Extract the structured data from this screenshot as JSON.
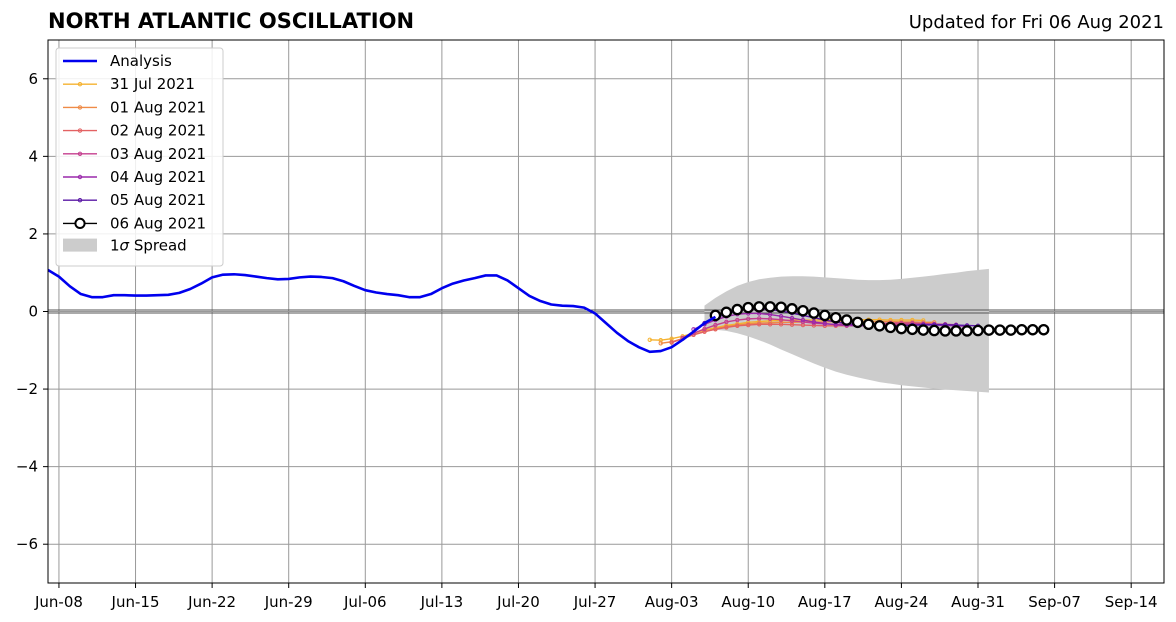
{
  "title": "NORTH ATLANTIC OSCILLATION",
  "updated": "Updated for Fri 06 Aug 2021",
  "legend": {
    "analysis": "Analysis",
    "spread_prefix": "1",
    "spread_sigma": "σ",
    "spread_suffix": " Spread"
  },
  "colors": {
    "analysis": "#0000ee",
    "spread": "#cccccc",
    "zero_line": "#555555",
    "grid": "#999999"
  },
  "chart_data": {
    "type": "line",
    "title": "NORTH ATLANTIC OSCILLATION",
    "xlabel": "",
    "ylabel": "",
    "ylim": [
      -7,
      7
    ],
    "xlim": [
      "2021-06-07",
      "2021-09-17"
    ],
    "grid": true,
    "legend_position": "top-left",
    "x_ticks": [
      {
        "date": "2021-06-08",
        "label": "Jun-08"
      },
      {
        "date": "2021-06-15",
        "label": "Jun-15"
      },
      {
        "date": "2021-06-22",
        "label": "Jun-22"
      },
      {
        "date": "2021-06-29",
        "label": "Jun-29"
      },
      {
        "date": "2021-07-06",
        "label": "Jul-06"
      },
      {
        "date": "2021-07-13",
        "label": "Jul-13"
      },
      {
        "date": "2021-07-20",
        "label": "Jul-20"
      },
      {
        "date": "2021-07-27",
        "label": "Jul-27"
      },
      {
        "date": "2021-08-03",
        "label": "Aug-03"
      },
      {
        "date": "2021-08-10",
        "label": "Aug-10"
      },
      {
        "date": "2021-08-17",
        "label": "Aug-17"
      },
      {
        "date": "2021-08-24",
        "label": "Aug-24"
      },
      {
        "date": "2021-08-31",
        "label": "Aug-31"
      },
      {
        "date": "2021-09-07",
        "label": "Sep-07"
      },
      {
        "date": "2021-09-14",
        "label": "Sep-14"
      }
    ],
    "y_ticks": [
      {
        "value": 6,
        "label": "6"
      },
      {
        "value": 4,
        "label": "4"
      },
      {
        "value": 2,
        "label": "2"
      },
      {
        "value": 0,
        "label": "0"
      },
      {
        "value": -2,
        "label": "−2"
      },
      {
        "value": -4,
        "label": "−4"
      },
      {
        "value": -6,
        "label": "−6"
      }
    ],
    "analysis": {
      "name": "Analysis",
      "start": "2021-06-07",
      "values": [
        1.07,
        0.9,
        0.65,
        0.45,
        0.37,
        0.37,
        0.42,
        0.42,
        0.41,
        0.41,
        0.42,
        0.43,
        0.48,
        0.58,
        0.72,
        0.88,
        0.95,
        0.96,
        0.94,
        0.9,
        0.86,
        0.83,
        0.84,
        0.88,
        0.9,
        0.89,
        0.86,
        0.78,
        0.66,
        0.55,
        0.49,
        0.45,
        0.42,
        0.37,
        0.37,
        0.45,
        0.6,
        0.72,
        0.8,
        0.86,
        0.93,
        0.93,
        0.8,
        0.6,
        0.4,
        0.27,
        0.18,
        0.15,
        0.14,
        0.1,
        -0.05,
        -0.3,
        -0.55,
        -0.76,
        -0.92,
        -1.04,
        -1.02,
        -0.92,
        -0.73,
        -0.52,
        -0.3,
        -0.14
      ]
    },
    "spread": {
      "name": "1σ Spread",
      "start": "2021-08-06",
      "upper": [
        0.15,
        0.35,
        0.52,
        0.66,
        0.76,
        0.83,
        0.87,
        0.9,
        0.91,
        0.91,
        0.9,
        0.88,
        0.86,
        0.84,
        0.82,
        0.81,
        0.81,
        0.82,
        0.84,
        0.87,
        0.9,
        0.93,
        0.97,
        1.0,
        1.04,
        1.07,
        1.1
      ],
      "lower": [
        -0.45,
        -0.47,
        -0.5,
        -0.56,
        -0.64,
        -0.74,
        -0.85,
        -0.98,
        -1.1,
        -1.22,
        -1.34,
        -1.45,
        -1.55,
        -1.63,
        -1.7,
        -1.76,
        -1.82,
        -1.86,
        -1.9,
        -1.93,
        -1.96,
        -1.99,
        -2.01,
        -2.03,
        -2.05,
        -2.07,
        -2.09
      ]
    },
    "forecasts": [
      {
        "name": "31 Jul 2021",
        "color": "#f5b22f",
        "start": "2021-08-01",
        "values": [
          -0.73,
          -0.74,
          -0.7,
          -0.64,
          -0.56,
          -0.48,
          -0.42,
          -0.36,
          -0.32,
          -0.28,
          -0.26,
          -0.24,
          -0.23,
          -0.22,
          -0.22,
          -0.22,
          -0.22,
          -0.21,
          -0.21,
          -0.21,
          -0.21,
          -0.21,
          -0.22,
          -0.22,
          -0.22,
          -0.23
        ]
      },
      {
        "name": "01 Aug 2021",
        "color": "#ef8b47",
        "start": "2021-08-02",
        "values": [
          -0.82,
          -0.78,
          -0.7,
          -0.6,
          -0.52,
          -0.45,
          -0.39,
          -0.35,
          -0.32,
          -0.3,
          -0.29,
          -0.28,
          -0.28,
          -0.27,
          -0.27,
          -0.27,
          -0.26,
          -0.26,
          -0.26,
          -0.26,
          -0.26,
          -0.26,
          -0.27,
          -0.27,
          -0.28,
          -0.28
        ]
      },
      {
        "name": "02 Aug 2021",
        "color": "#e36263",
        "start": "2021-08-03",
        "values": [
          -0.8,
          -0.7,
          -0.6,
          -0.52,
          -0.46,
          -0.41,
          -0.37,
          -0.35,
          -0.33,
          -0.33,
          -0.33,
          -0.34,
          -0.35,
          -0.36,
          -0.37,
          -0.37,
          -0.37,
          -0.36,
          -0.35,
          -0.34,
          -0.33,
          -0.33,
          -0.33,
          -0.33,
          -0.33,
          -0.33
        ]
      },
      {
        "name": "03 Aug 2021",
        "color": "#c43e8e",
        "start": "2021-08-04",
        "values": [
          -0.68,
          -0.56,
          -0.45,
          -0.35,
          -0.27,
          -0.22,
          -0.19,
          -0.18,
          -0.19,
          -0.21,
          -0.24,
          -0.27,
          -0.3,
          -0.32,
          -0.33,
          -0.33,
          -0.33,
          -0.32,
          -0.31,
          -0.3,
          -0.3,
          -0.3,
          -0.31,
          -0.32,
          -0.33,
          -0.34
        ]
      },
      {
        "name": "04 Aug 2021",
        "color": "#9a28ab",
        "start": "2021-08-05",
        "values": [
          -0.46,
          -0.33,
          -0.22,
          -0.13,
          -0.07,
          -0.05,
          -0.05,
          -0.08,
          -0.12,
          -0.17,
          -0.22,
          -0.27,
          -0.31,
          -0.34,
          -0.36,
          -0.37,
          -0.37,
          -0.37,
          -0.36,
          -0.35,
          -0.35,
          -0.35,
          -0.35,
          -0.36,
          -0.37,
          -0.38
        ]
      },
      {
        "name": "05 Aug 2021",
        "color": "#5a17a5",
        "start": "2021-08-06",
        "values": [
          -0.3,
          -0.17,
          -0.06,
          0.02,
          0.06,
          0.07,
          0.05,
          0.01,
          -0.04,
          -0.1,
          -0.16,
          -0.22,
          -0.27,
          -0.31,
          -0.34,
          -0.36,
          -0.37,
          -0.37,
          -0.36,
          -0.35,
          -0.34,
          -0.34,
          -0.34,
          -0.35,
          -0.36,
          -0.37
        ]
      },
      {
        "name": "06 Aug 2021",
        "color": "#000000",
        "start": "2021-08-07",
        "values": [
          -0.1,
          -0.02,
          0.05,
          0.1,
          0.12,
          0.12,
          0.11,
          0.07,
          0.02,
          -0.04,
          -0.1,
          -0.16,
          -0.22,
          -0.28,
          -0.33,
          -0.37,
          -0.41,
          -0.44,
          -0.46,
          -0.48,
          -0.49,
          -0.5,
          -0.5,
          -0.5,
          -0.49,
          -0.48,
          -0.48,
          -0.48,
          -0.47,
          -0.47,
          -0.47
        ]
      }
    ]
  }
}
